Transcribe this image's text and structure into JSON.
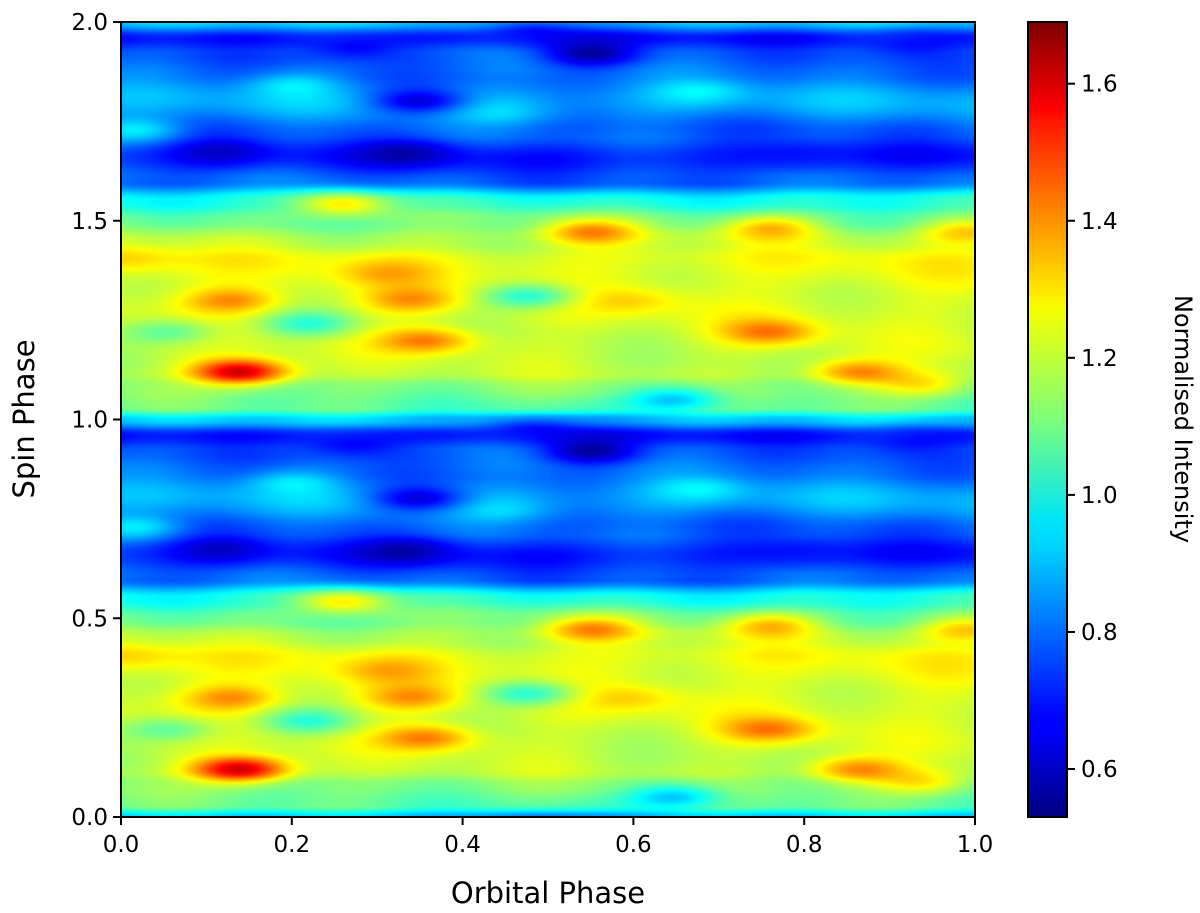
{
  "chart_data": {
    "type": "heatmap",
    "title": "",
    "xlabel": "Orbital Phase",
    "ylabel": "Spin Phase",
    "xlim": [
      0.0,
      1.0
    ],
    "ylim": [
      0.0,
      2.0
    ],
    "xticks": [
      "0.0",
      "0.2",
      "0.4",
      "0.6",
      "0.8",
      "1.0"
    ],
    "yticks": [
      "0.0",
      "0.5",
      "1.0",
      "1.5",
      "2.0"
    ],
    "colorbar": {
      "label": "Normalised Intensity",
      "colormap": "jet",
      "range": [
        0.53,
        1.69
      ],
      "ticks": [
        "0.6",
        "0.8",
        "1.0",
        "1.2",
        "1.4",
        "1.6"
      ]
    },
    "grid": false,
    "spin_periodic": true,
    "baseline": 1.12,
    "spin_profile": [
      [
        0.0,
        0.9
      ],
      [
        0.03,
        1.08
      ],
      [
        0.08,
        1.12
      ],
      [
        0.12,
        1.18
      ],
      [
        0.2,
        1.2
      ],
      [
        0.3,
        1.22
      ],
      [
        0.4,
        1.24
      ],
      [
        0.45,
        1.18
      ],
      [
        0.5,
        1.1
      ],
      [
        0.55,
        1.0
      ],
      [
        0.6,
        0.78
      ],
      [
        0.66,
        0.7
      ],
      [
        0.72,
        0.78
      ],
      [
        0.8,
        0.87
      ],
      [
        0.87,
        0.8
      ],
      [
        0.92,
        0.78
      ],
      [
        0.96,
        0.7
      ],
      [
        1.0,
        0.9
      ]
    ],
    "features": [
      {
        "orbital_phase": 0.14,
        "spin_phase": 0.12,
        "intensity": 1.66
      },
      {
        "orbital_phase": 0.13,
        "spin_phase": 0.3,
        "intensity": 1.4
      },
      {
        "orbital_phase": 0.01,
        "spin_phase": 0.4,
        "intensity": 1.32
      },
      {
        "orbital_phase": 0.36,
        "spin_phase": 0.2,
        "intensity": 1.42
      },
      {
        "orbital_phase": 0.34,
        "spin_phase": 0.3,
        "intensity": 1.38
      },
      {
        "orbital_phase": 0.31,
        "spin_phase": 0.37,
        "intensity": 1.33
      },
      {
        "orbital_phase": 0.55,
        "spin_phase": 0.47,
        "intensity": 1.38
      },
      {
        "orbital_phase": 0.76,
        "spin_phase": 0.22,
        "intensity": 1.4
      },
      {
        "orbital_phase": 0.86,
        "spin_phase": 0.12,
        "intensity": 1.42
      },
      {
        "orbital_phase": 0.94,
        "spin_phase": 0.09,
        "intensity": 1.3
      },
      {
        "orbital_phase": 0.76,
        "spin_phase": 0.48,
        "intensity": 1.33
      },
      {
        "orbital_phase": 0.99,
        "spin_phase": 0.47,
        "intensity": 1.33
      },
      {
        "orbital_phase": 0.26,
        "spin_phase": 0.54,
        "intensity": 1.3
      },
      {
        "orbital_phase": 0.6,
        "spin_phase": 0.3,
        "intensity": 1.3
      },
      {
        "orbital_phase": 0.22,
        "spin_phase": 0.24,
        "intensity": 1.02
      },
      {
        "orbital_phase": 0.48,
        "spin_phase": 0.31,
        "intensity": 0.98
      },
      {
        "orbital_phase": 0.06,
        "spin_phase": 0.22,
        "intensity": 1.04
      },
      {
        "orbital_phase": 0.55,
        "spin_phase": 0.92,
        "intensity": 0.56
      },
      {
        "orbital_phase": 0.34,
        "spin_phase": 0.67,
        "intensity": 0.6
      },
      {
        "orbital_phase": 0.12,
        "spin_phase": 0.67,
        "intensity": 0.62
      },
      {
        "orbital_phase": 0.27,
        "spin_phase": 0.94,
        "intensity": 0.64
      },
      {
        "orbital_phase": 0.35,
        "spin_phase": 0.8,
        "intensity": 0.64
      },
      {
        "orbital_phase": 0.8,
        "spin_phase": 0.66,
        "intensity": 0.66
      },
      {
        "orbital_phase": 0.92,
        "spin_phase": 0.95,
        "intensity": 0.68
      },
      {
        "orbital_phase": 0.48,
        "spin_phase": 0.97,
        "intensity": 0.66
      },
      {
        "orbital_phase": 0.65,
        "spin_phase": 0.05,
        "intensity": 0.86
      },
      {
        "orbital_phase": 0.2,
        "spin_phase": 0.84,
        "intensity": 0.94
      },
      {
        "orbital_phase": 0.68,
        "spin_phase": 0.82,
        "intensity": 0.95
      },
      {
        "orbital_phase": 0.02,
        "spin_phase": 0.73,
        "intensity": 0.96
      },
      {
        "orbital_phase": 0.45,
        "spin_phase": 0.78,
        "intensity": 0.92
      }
    ]
  }
}
